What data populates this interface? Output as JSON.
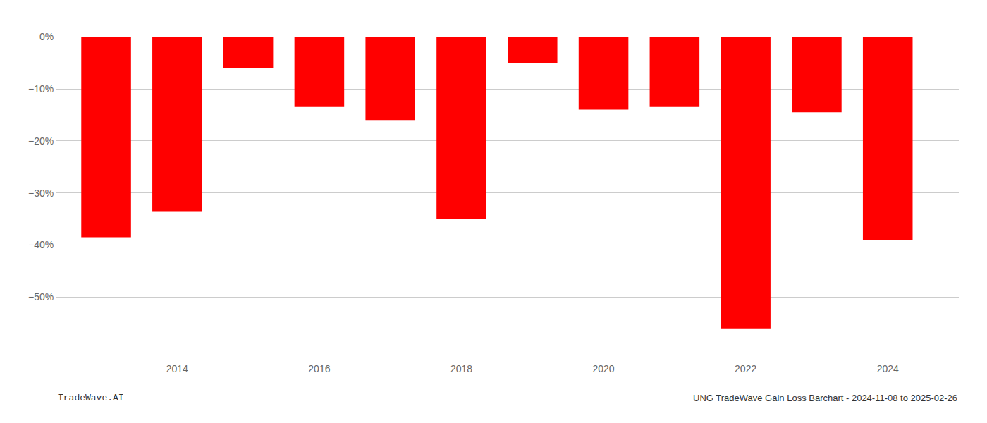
{
  "chart_data": {
    "type": "bar",
    "x": [
      2013,
      2014,
      2015,
      2016,
      2017,
      2018,
      2019,
      2020,
      2021,
      2022,
      2023,
      2024
    ],
    "values": [
      -38.5,
      -33.5,
      -6.0,
      -13.5,
      -16.0,
      -35.0,
      -5.0,
      -14.0,
      -13.5,
      -56.0,
      -14.5,
      -39.0
    ],
    "color": "#ff0000",
    "xlim": [
      2012.3,
      2025.0
    ],
    "xticks": [
      2014,
      2016,
      2018,
      2020,
      2022,
      2024
    ],
    "ylim": [
      -62,
      3
    ],
    "yticks": [
      {
        "value": 0,
        "label": "0%"
      },
      {
        "value": -10,
        "label": "−10%"
      },
      {
        "value": -20,
        "label": "−20%"
      },
      {
        "value": -30,
        "label": "−30%"
      },
      {
        "value": -40,
        "label": "−40%"
      },
      {
        "value": -50,
        "label": "−50%"
      }
    ],
    "grid": "y",
    "annotations": [
      "TradeWave.AI",
      "UNG TradeWave Gain Loss Barchart - 2024-11-08 to 2025-02-26"
    ]
  }
}
